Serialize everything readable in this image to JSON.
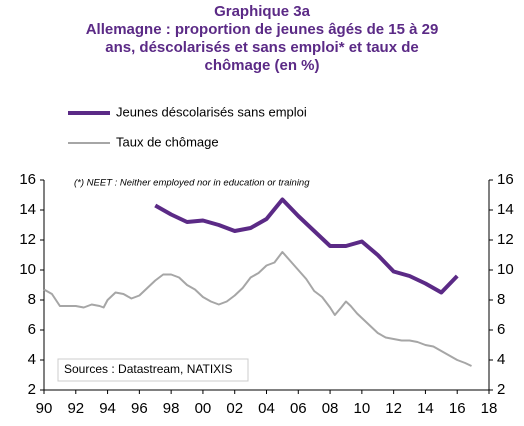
{
  "chart_data": {
    "type": "line",
    "title": [
      "Graphique 3a",
      "Allemagne : proportion de jeunes âgés de 15 à 29",
      "ans, déscolarisés et sans emploi* et taux de",
      "chômage  (en %)"
    ],
    "annotations": [
      "(*) NEET : Neither employed nor in education or training",
      "Sources : Datastream, NATIXIS"
    ],
    "xlim": [
      1990,
      2018
    ],
    "xticks": [
      {
        "value": 1990,
        "label": "90"
      },
      {
        "value": 1992,
        "label": "92"
      },
      {
        "value": 1994,
        "label": "94"
      },
      {
        "value": 1996,
        "label": "96"
      },
      {
        "value": 1998,
        "label": "98"
      },
      {
        "value": 2000,
        "label": "00"
      },
      {
        "value": 2002,
        "label": "02"
      },
      {
        "value": 2004,
        "label": "04"
      },
      {
        "value": 2006,
        "label": "06"
      },
      {
        "value": 2008,
        "label": "08"
      },
      {
        "value": 2010,
        "label": "10"
      },
      {
        "value": 2012,
        "label": "12"
      },
      {
        "value": 2014,
        "label": "14"
      },
      {
        "value": 2016,
        "label": "16"
      },
      {
        "value": 2018,
        "label": "18"
      }
    ],
    "ylim": [
      2,
      16
    ],
    "yticks": [
      2,
      4,
      6,
      8,
      10,
      12,
      14,
      16
    ],
    "y2lim": [
      2,
      16
    ],
    "y2ticks": [
      2,
      4,
      6,
      8,
      10,
      12,
      14,
      16
    ],
    "series": [
      {
        "name": "Jeunes déscolarisés sans emploi",
        "color": "#5b2a86",
        "x": [
          1997,
          1998,
          1999,
          2000,
          2001,
          2002,
          2003,
          2004,
          2005,
          2006,
          2007,
          2008,
          2009,
          2010,
          2011,
          2012,
          2013,
          2014,
          2015,
          2016
        ],
        "values": [
          14.3,
          13.7,
          13.2,
          13.3,
          13.0,
          12.6,
          12.8,
          13.4,
          14.7,
          13.6,
          12.6,
          11.6,
          11.6,
          11.9,
          11.0,
          9.9,
          9.6,
          9.1,
          8.5,
          9.6
        ]
      },
      {
        "name": "Taux de chômage",
        "color": "#a6a6a6",
        "x": [
          1990.0,
          1990.5,
          1991.0,
          1991.5,
          1992.0,
          1992.5,
          1993.0,
          1993.5,
          1993.75,
          1994.0,
          1994.5,
          1995.0,
          1995.5,
          1996.0,
          1996.5,
          1997.0,
          1997.5,
          1998.0,
          1998.5,
          1999.0,
          1999.5,
          2000.0,
          2000.5,
          2001.0,
          2001.5,
          2002.0,
          2002.5,
          2003.0,
          2003.5,
          2004.0,
          2004.5,
          2005.0,
          2005.5,
          2006.0,
          2006.5,
          2007.0,
          2007.5,
          2008.0,
          2008.3,
          2008.7,
          2009.0,
          2009.3,
          2009.7,
          2010.0,
          2010.5,
          2011.0,
          2011.5,
          2012.0,
          2012.5,
          2013.0,
          2013.5,
          2014.0,
          2014.5,
          2015.0,
          2015.5,
          2016.0,
          2016.5,
          2016.9
        ],
        "values": [
          8.7,
          8.4,
          7.6,
          7.6,
          7.6,
          7.5,
          7.7,
          7.6,
          7.5,
          8.0,
          8.5,
          8.4,
          8.1,
          8.3,
          8.8,
          9.3,
          9.7,
          9.7,
          9.5,
          9.0,
          8.7,
          8.2,
          7.9,
          7.7,
          7.9,
          8.3,
          8.8,
          9.5,
          9.8,
          10.3,
          10.5,
          11.2,
          10.6,
          10.0,
          9.4,
          8.6,
          8.2,
          7.5,
          7.0,
          7.5,
          7.9,
          7.6,
          7.1,
          6.8,
          6.3,
          5.8,
          5.5,
          5.4,
          5.3,
          5.3,
          5.2,
          5.0,
          4.9,
          4.6,
          4.3,
          4.0,
          3.8,
          3.6
        ]
      }
    ]
  }
}
